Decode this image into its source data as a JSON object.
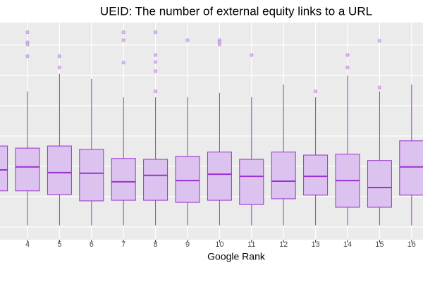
{
  "chart_data": {
    "type": "boxplot",
    "title": "UEID: The number of external equity links to a URL",
    "x_label": "Google Rank",
    "categories": [
      null,
      "4",
      "5",
      "6",
      "7",
      "8",
      "9",
      "10",
      "11",
      "12",
      "13",
      "14",
      "15",
      "16"
    ],
    "boxes": [
      {
        "low": 0.05,
        "q1": 1.19,
        "median": 1.88,
        "q3": 2.67,
        "high": 4.47,
        "outliers": []
      },
      {
        "low": 0.05,
        "q1": 1.19,
        "median": 1.98,
        "q3": 2.6,
        "high": 4.47,
        "outliers": [
          6.42,
          6.09,
          6.02,
          5.63
        ]
      },
      {
        "low": 0.05,
        "q1": 1.07,
        "median": 1.79,
        "q3": 2.67,
        "high": 5.05,
        "outliers": [
          5.63,
          5.26
        ]
      },
      {
        "low": 0.05,
        "q1": 0.86,
        "median": 1.77,
        "q3": 2.56,
        "high": 4.88,
        "outliers": []
      },
      {
        "low": 0.05,
        "q1": 0.88,
        "median": 1.49,
        "q3": 2.26,
        "high": 4.28,
        "outliers": [
          6.42,
          6.16,
          5.42
        ]
      },
      {
        "low": 0.05,
        "q1": 0.88,
        "median": 1.7,
        "q3": 2.23,
        "high": 4.28,
        "outliers": [
          6.42,
          5.67,
          5.44,
          5.14,
          4.47
        ]
      },
      {
        "low": 0.05,
        "q1": 0.81,
        "median": 1.53,
        "q3": 2.33,
        "high": 4.28,
        "outliers": [
          6.16
        ]
      },
      {
        "low": 0.05,
        "q1": 0.88,
        "median": 1.74,
        "q3": 2.47,
        "high": 4.42,
        "outliers": [
          6.16,
          6.09,
          6.02
        ]
      },
      {
        "low": 0.05,
        "q1": 0.74,
        "median": 1.67,
        "q3": 2.23,
        "high": 4.28,
        "outliers": [
          5.67
        ]
      },
      {
        "low": 0.05,
        "q1": 0.93,
        "median": 1.51,
        "q3": 2.47,
        "high": 4.7,
        "outliers": []
      },
      {
        "low": 0.05,
        "q1": 1.05,
        "median": 1.67,
        "q3": 2.37,
        "high": 4.28,
        "outliers": [
          4.47
        ]
      },
      {
        "low": 0.05,
        "q1": 0.65,
        "median": 1.53,
        "q3": 2.4,
        "high": 5.0,
        "outliers": [
          5.67,
          5.26
        ]
      },
      {
        "low": 0.05,
        "q1": 0.65,
        "median": 1.3,
        "q3": 2.19,
        "high": 4.47,
        "outliers": [
          6.14,
          4.6
        ]
      },
      {
        "low": 0.05,
        "q1": 1.05,
        "median": 1.98,
        "q3": 2.84,
        "high": 4.7,
        "outliers": []
      }
    ],
    "fill": "#dcc2ef",
    "color": "#9a32cd",
    "ylim": [
      -0.42,
      6.74
    ],
    "ygrid": [
      0,
      1,
      2,
      3,
      4,
      5,
      6
    ],
    "grid": true
  }
}
